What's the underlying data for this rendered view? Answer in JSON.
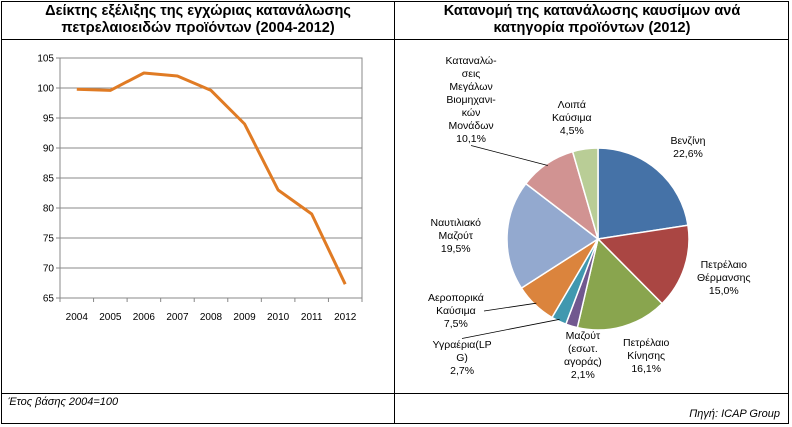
{
  "charts": {
    "left": {
      "title_line1": "Δείκτης εξέλιξης της εγχώριας κατανάλωσης",
      "title_line2": "πετρελαιοειδών προϊόντων (2004-2012)",
      "footnote": "Έτος βάσης 2004=100"
    },
    "right": {
      "title_line1": "Κατανομή της κατανάλωσης καυσίμων ανά",
      "title_line2": "κατηγορία προϊόντων (2012)",
      "source": "Πηγή: ICAP Group"
    }
  },
  "chart_data": [
    {
      "type": "line",
      "title": "Δείκτης εξέλιξης της εγχώριας κατανάλωσης πετρελαιοειδών προϊόντων (2004-2012)",
      "x": [
        "2004",
        "2005",
        "2006",
        "2007",
        "2008",
        "2009",
        "2010",
        "2011",
        "2012"
      ],
      "series": [
        {
          "values": [
            99.8,
            99.6,
            102.5,
            102.0,
            99.6,
            94.0,
            83.0,
            79.0,
            67.3
          ],
          "color": "#E07B24"
        }
      ],
      "ylim": [
        65,
        105
      ],
      "yticks": [
        "65",
        "70",
        "75",
        "80",
        "85",
        "90",
        "95",
        "100",
        "105"
      ],
      "grid": true,
      "legend": "none"
    },
    {
      "type": "pie",
      "title": "Κατανομή της κατανάλωσης καυσίμων ανά κατηγορία προϊόντων (2012)",
      "slices": [
        {
          "label_lines": [
            "Βενζίνη"
          ],
          "value": 22.6,
          "value_label": "22,6%",
          "color": "#4572A7"
        },
        {
          "label_lines": [
            "Πετρέλαιο",
            "Θέρμανσης"
          ],
          "value": 15.0,
          "value_label": "15,0%",
          "color": "#AA4643"
        },
        {
          "label_lines": [
            "Πετρέλαιο",
            "Κίνησης"
          ],
          "value": 16.1,
          "value_label": "16,1%",
          "color": "#89A54E"
        },
        {
          "label_lines": [
            "Μαζούτ",
            "(εσωτ.",
            "αγοράς)"
          ],
          "value": 2.1,
          "value_label": "2,1%",
          "color": "#71588F"
        },
        {
          "label_lines": [
            "Υγραέρια(LP",
            "G)"
          ],
          "value": 2.7,
          "value_label": "2,7%",
          "color": "#4198AF"
        },
        {
          "label_lines": [
            "Αεροπορικά",
            "Καύσιμα"
          ],
          "value": 7.5,
          "value_label": "7,5%",
          "color": "#DB843D"
        },
        {
          "label_lines": [
            "Ναυτιλιακό",
            "Μαζούτ"
          ],
          "value": 19.5,
          "value_label": "19,5%",
          "color": "#93A9CF"
        },
        {
          "label_lines": [
            "Καταναλώ-",
            "σεις",
            "Μεγάλων",
            "Βιομηχανι-",
            "κών",
            "Μονάδων"
          ],
          "value": 10.1,
          "value_label": "10,1%",
          "color": "#D19392"
        },
        {
          "label_lines": [
            "Λοιπά",
            "Καύσιμα"
          ],
          "value": 4.5,
          "value_label": "4,5%",
          "color": "#B9CD96"
        }
      ],
      "legend": "none"
    }
  ]
}
